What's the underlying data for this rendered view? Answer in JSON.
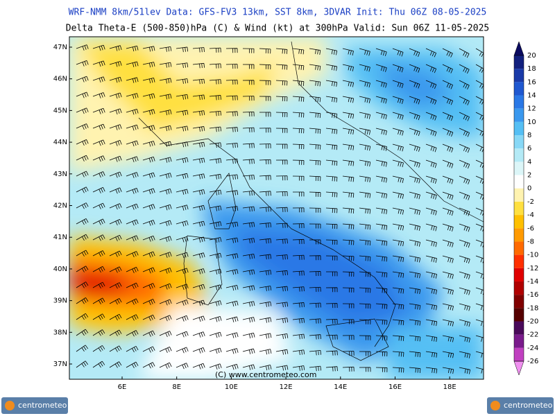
{
  "header": {
    "line1": "WRF-NMM 8km/51lev   Data: GFS-FV3 13km, SST 8km, 3DVAR   Init: Thu 06Z 08-05-2025",
    "line2": "Delta Theta-E (500-850)hPa (C) & Wind (kt) at 300hPa   Valid: Sun 06Z 11-05-2025"
  },
  "map": {
    "lat_labels": [
      "47N",
      "46N",
      "45N",
      "44N",
      "43N",
      "42N",
      "41N",
      "40N",
      "39N",
      "38N",
      "37N"
    ],
    "lon_labels": [
      "6E",
      "8E",
      "10E",
      "12E",
      "14E",
      "16E",
      "18E"
    ],
    "watermark": "(C) www.centrometeo.com"
  },
  "colorbar": {
    "levels": [
      20,
      18,
      16,
      14,
      12,
      10,
      8,
      6,
      4,
      2,
      0,
      -2,
      -4,
      -6,
      -8,
      -10,
      -12,
      -14,
      -16,
      -18,
      -20,
      -22,
      -24,
      -26
    ],
    "colors": [
      "#0a0a60",
      "#12207e",
      "#1a3aa8",
      "#1f58d0",
      "#2a78e6",
      "#3a98ee",
      "#55bff4",
      "#88d8f6",
      "#b4eaf6",
      "#dcf6f8",
      "#ffffff",
      "#fff3b0",
      "#ffe040",
      "#ffc000",
      "#ff9a00",
      "#ff6a00",
      "#ff3000",
      "#e00000",
      "#b00000",
      "#800000",
      "#560000",
      "#4a0a5a",
      "#7a1b8c",
      "#c040c0",
      "#f090f0"
    ]
  },
  "footer": {
    "logo_left": "centrometeo",
    "logo_right": "centrometeo"
  }
}
